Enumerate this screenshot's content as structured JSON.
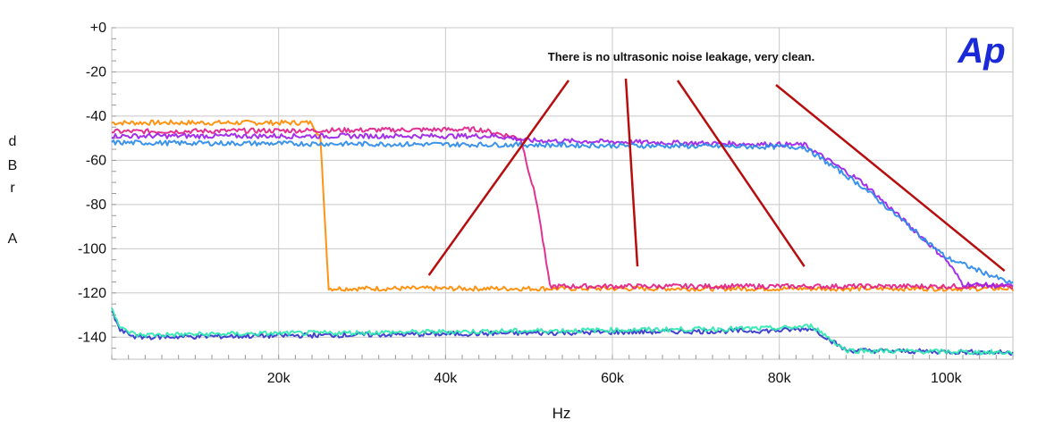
{
  "chart_data": {
    "type": "line",
    "title": "",
    "xlabel": "Hz",
    "ylabel_letters": [
      "d",
      "B",
      "r",
      "",
      "A"
    ],
    "xlim": [
      0,
      108000
    ],
    "ylim": [
      -150,
      0
    ],
    "x_ticks": [
      {
        "value": 20000,
        "label": "20k"
      },
      {
        "value": 40000,
        "label": "40k"
      },
      {
        "value": 60000,
        "label": "60k"
      },
      {
        "value": 80000,
        "label": "80k"
      },
      {
        "value": 100000,
        "label": "100k"
      }
    ],
    "y_ticks": [
      {
        "value": 0,
        "label": "+0"
      },
      {
        "value": -20,
        "label": "-20"
      },
      {
        "value": -40,
        "label": "-40"
      },
      {
        "value": -60,
        "label": "-60"
      },
      {
        "value": -80,
        "label": "-80"
      },
      {
        "value": -100,
        "label": "-100"
      },
      {
        "value": -120,
        "label": "-120"
      },
      {
        "value": -140,
        "label": "-140"
      }
    ],
    "grid": true,
    "annotation": {
      "text": "There is no ultrasonic noise leakage, very clean.",
      "arrows_to": [
        [
          38000,
          -112
        ],
        [
          63000,
          -108
        ],
        [
          83000,
          -108
        ],
        [
          107000,
          -110
        ]
      ]
    },
    "logo": "Ap",
    "series": [
      {
        "color": "#ff8a00",
        "points": [
          [
            0,
            -43
          ],
          [
            24000,
            -43
          ],
          [
            25000,
            -50
          ],
          [
            26000,
            -118
          ],
          [
            108000,
            -118
          ]
        ]
      },
      {
        "color": "#e0208a",
        "points": [
          [
            0,
            -47
          ],
          [
            44000,
            -46
          ],
          [
            49000,
            -50
          ],
          [
            51000,
            -80
          ],
          [
            52500,
            -117
          ],
          [
            108000,
            -117
          ]
        ]
      },
      {
        "color": "#9b1ee8",
        "points": [
          [
            0,
            -49
          ],
          [
            46000,
            -49
          ],
          [
            50000,
            -51
          ],
          [
            83000,
            -53
          ],
          [
            90000,
            -70
          ],
          [
            100000,
            -105
          ],
          [
            102000,
            -116
          ],
          [
            108000,
            -117
          ]
        ]
      },
      {
        "color": "#2b8ae8",
        "points": [
          [
            0,
            -52
          ],
          [
            50000,
            -53
          ],
          [
            83000,
            -54
          ],
          [
            90000,
            -72
          ],
          [
            100000,
            -104
          ],
          [
            108000,
            -116
          ]
        ]
      },
      {
        "color": "#3333cc",
        "points": [
          [
            0,
            -128
          ],
          [
            1000,
            -137
          ],
          [
            3000,
            -140
          ],
          [
            80000,
            -137
          ],
          [
            84000,
            -136
          ],
          [
            88000,
            -146
          ],
          [
            108000,
            -147
          ]
        ]
      },
      {
        "color": "#2ee8b0",
        "points": [
          [
            0,
            -126
          ],
          [
            1000,
            -136
          ],
          [
            3000,
            -139
          ],
          [
            80000,
            -136
          ],
          [
            84000,
            -135
          ],
          [
            88000,
            -146
          ],
          [
            108000,
            -147
          ]
        ]
      }
    ]
  }
}
